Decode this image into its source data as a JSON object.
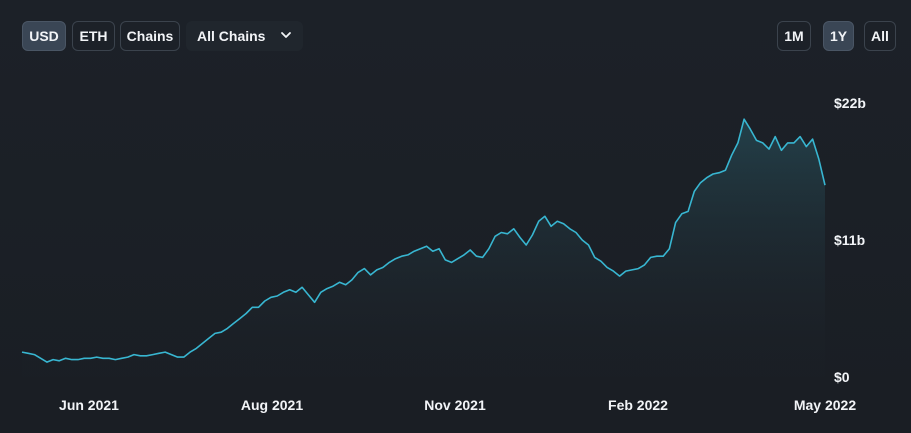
{
  "controls": {
    "currency": [
      {
        "label": "USD",
        "active": true
      },
      {
        "label": "ETH",
        "active": false
      }
    ],
    "chains_label": "Chains",
    "chain_select": "All Chains",
    "ranges": [
      {
        "label": "1M",
        "active": false
      },
      {
        "label": "1Y",
        "active": true
      },
      {
        "label": "All",
        "active": false
      }
    ]
  },
  "chart_data": {
    "type": "area",
    "xlabel": "",
    "ylabel": "",
    "y_unit": "USD (billions)",
    "ylim": [
      0,
      22
    ],
    "y_ticks": [
      {
        "value": 0,
        "label": "$0"
      },
      {
        "value": 11,
        "label": "$11b"
      },
      {
        "value": 22,
        "label": "$22b"
      }
    ],
    "x_ticks": [
      "Jun 2021",
      "Aug 2021",
      "Nov 2021",
      "Feb 2022",
      "May 2022"
    ],
    "colors": {
      "line": "#38b6d1",
      "fill_top": "#2a5a66",
      "fill_bottom": "#1c2128"
    },
    "series": [
      {
        "values": [
          2.0,
          1.9,
          1.8,
          1.5,
          1.2,
          1.4,
          1.3,
          1.5,
          1.4,
          1.4,
          1.5,
          1.5,
          1.6,
          1.5,
          1.5,
          1.4,
          1.5,
          1.6,
          1.8,
          1.7,
          1.7,
          1.8,
          1.9,
          2.0,
          1.8,
          1.6,
          1.6,
          2.0,
          2.3,
          2.7,
          3.1,
          3.5,
          3.6,
          3.9,
          4.3,
          4.7,
          5.1,
          5.6,
          5.6,
          6.1,
          6.4,
          6.5,
          6.8,
          7.0,
          6.8,
          7.2,
          6.6,
          6.0,
          6.8,
          7.1,
          7.3,
          7.6,
          7.4,
          7.8,
          8.4,
          8.7,
          8.2,
          8.6,
          8.8,
          9.2,
          9.5,
          9.7,
          9.8,
          10.1,
          10.3,
          10.5,
          10.1,
          10.3,
          9.4,
          9.2,
          9.5,
          9.8,
          10.2,
          9.7,
          9.6,
          10.3,
          11.3,
          11.6,
          11.5,
          11.9,
          11.2,
          10.6,
          11.4,
          12.5,
          12.9,
          12.1,
          12.5,
          12.3,
          11.9,
          11.6,
          11.0,
          10.6,
          9.6,
          9.3,
          8.8,
          8.5,
          8.1,
          8.5,
          8.6,
          8.7,
          9.0,
          9.6,
          9.7,
          9.7,
          10.3,
          12.4,
          13.1,
          13.3,
          14.9,
          15.6,
          16.0,
          16.3,
          16.4,
          16.6,
          17.8,
          18.8,
          20.7,
          19.9,
          19.0,
          18.8,
          18.3,
          19.3,
          18.2,
          18.8,
          18.8,
          19.3,
          18.5,
          19.1,
          17.5,
          15.4
        ]
      }
    ]
  }
}
